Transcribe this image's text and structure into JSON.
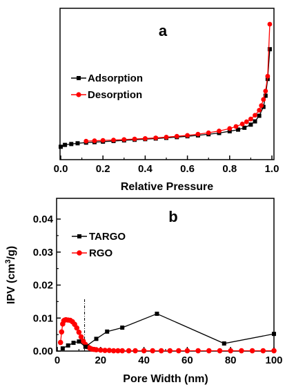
{
  "chart_data": [
    {
      "panel": "a",
      "type": "line",
      "title": "",
      "xlabel": "Relative Pressure",
      "ylabel": "",
      "xlim": [
        0.0,
        1.0
      ],
      "xticks": [
        "0.0",
        "0.2",
        "0.4",
        "0.6",
        "0.8",
        "1.0"
      ],
      "ylim": [
        0,
        100
      ],
      "yticks_labels": "none",
      "legend": {
        "placement": "left",
        "entries": [
          "Adsorption",
          "Desorption"
        ]
      },
      "grid": false,
      "series": [
        {
          "name": "Adsorption",
          "color": "#000000",
          "marker": "square",
          "x": [
            0.0,
            0.02,
            0.05,
            0.08,
            0.12,
            0.16,
            0.2,
            0.25,
            0.3,
            0.35,
            0.4,
            0.45,
            0.5,
            0.55,
            0.6,
            0.65,
            0.7,
            0.75,
            0.8,
            0.84,
            0.87,
            0.9,
            0.92,
            0.94,
            0.96,
            0.97,
            0.98,
            0.99
          ],
          "y": [
            2,
            3.5,
            4.2,
            4.8,
            5.3,
            5.7,
            6.1,
            6.6,
            7.1,
            7.6,
            8.1,
            8.6,
            9.1,
            9.7,
            10.4,
            11.1,
            12.0,
            13.0,
            14.4,
            15.7,
            17.2,
            19.7,
            22.3,
            26.8,
            33.9,
            42.8,
            56.2,
            80.0
          ]
        },
        {
          "name": "Desorption",
          "color": "#ff0000",
          "marker": "circle",
          "x": [
            0.12,
            0.16,
            0.2,
            0.25,
            0.3,
            0.35,
            0.4,
            0.45,
            0.5,
            0.55,
            0.6,
            0.65,
            0.7,
            0.75,
            0.8,
            0.83,
            0.86,
            0.88,
            0.9,
            0.92,
            0.94,
            0.95,
            0.96,
            0.97,
            0.98,
            0.99
          ],
          "y": [
            6.5,
            6.8,
            7.1,
            7.4,
            7.8,
            8.2,
            8.6,
            9.1,
            9.7,
            10.4,
            11.1,
            12.1,
            13.2,
            14.6,
            16.6,
            18.2,
            20.2,
            22.0,
            24.2,
            27.2,
            31.2,
            34.9,
            39.8,
            46.5,
            58.4,
            100.0
          ]
        }
      ],
      "annotations": [
        "a"
      ]
    },
    {
      "panel": "b",
      "type": "line",
      "title": "",
      "xlabel": "Pore Width (nm)",
      "ylabel": "IPV (cm",
      "ylabel_sup": "3",
      "ylabel_end": "/g)",
      "xlim": [
        0,
        100
      ],
      "ylim": [
        0,
        0.04
      ],
      "xticks": [
        "0",
        "20",
        "40",
        "60",
        "80",
        "100"
      ],
      "yticks": [
        "0.00",
        "0.01",
        "0.02",
        "0.03",
        "0.04"
      ],
      "legend": {
        "placement": "top-left",
        "entries": [
          "TARGO",
          "RGO"
        ]
      },
      "grid": false,
      "series": [
        {
          "name": "TARGO",
          "color": "#000000",
          "marker": "square",
          "x": [
            2.5,
            5,
            7.5,
            10,
            13,
            18,
            23,
            30,
            46,
            77,
            100
          ],
          "y": [
            0.0008,
            0.0017,
            0.0025,
            0.0029,
            0.0013,
            0.0037,
            0.0059,
            0.0071,
            0.0113,
            0.0023,
            0.0052
          ]
        },
        {
          "name": "RGO",
          "color": "#ff0000",
          "marker": "circle",
          "x": [
            1.5,
            2,
            2.5,
            3,
            3.5,
            4,
            5,
            6,
            7,
            8,
            9,
            10,
            11,
            12,
            13,
            14,
            15,
            16,
            17,
            18,
            20,
            22,
            24,
            26,
            28,
            30,
            33,
            36,
            40,
            44,
            48,
            52,
            56,
            60,
            65,
            70,
            75,
            80,
            85,
            90,
            95,
            100
          ],
          "y": [
            0.0026,
            0.0058,
            0.0082,
            0.0092,
            0.0094,
            0.0095,
            0.0094,
            0.0093,
            0.0089,
            0.0081,
            0.007,
            0.0057,
            0.0043,
            0.003,
            0.002,
            0.0013,
            0.0009,
            0.0006,
            0.0005,
            0.0004,
            0.0003,
            0.0002,
            0.0002,
            0.0001,
            0.0001,
            0.0001,
            0.0001,
            0.0001,
            0.0001,
            0.0001,
            0.0001,
            0.0001,
            0.0001,
            0.0001,
            0.0001,
            0.0001,
            0.0001,
            0.0001,
            0.0001,
            0.0001,
            0.0001,
            0.0001
          ]
        }
      ],
      "reference_line": {
        "x": 12.6,
        "style": "dash-dot"
      },
      "annotations": [
        "b"
      ]
    }
  ]
}
